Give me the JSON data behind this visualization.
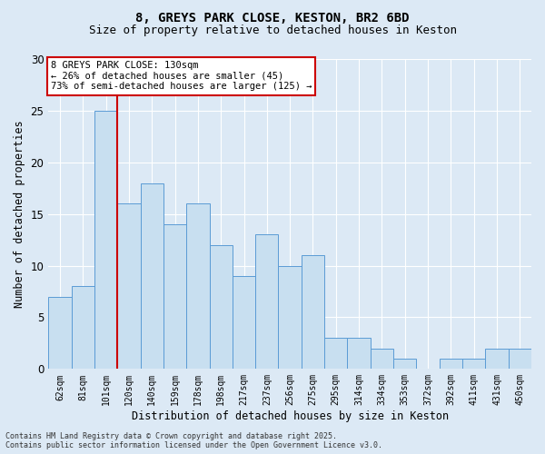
{
  "title_line1": "8, GREYS PARK CLOSE, KESTON, BR2 6BD",
  "title_line2": "Size of property relative to detached houses in Keston",
  "xlabel": "Distribution of detached houses by size in Keston",
  "ylabel": "Number of detached properties",
  "categories": [
    "62sqm",
    "81sqm",
    "101sqm",
    "120sqm",
    "140sqm",
    "159sqm",
    "178sqm",
    "198sqm",
    "217sqm",
    "237sqm",
    "256sqm",
    "275sqm",
    "295sqm",
    "314sqm",
    "334sqm",
    "353sqm",
    "372sqm",
    "392sqm",
    "411sqm",
    "431sqm",
    "450sqm"
  ],
  "values": [
    7,
    8,
    25,
    16,
    18,
    14,
    16,
    12,
    9,
    13,
    10,
    11,
    3,
    3,
    2,
    1,
    0,
    1,
    1,
    2,
    2
  ],
  "bar_color": "#c8dff0",
  "bar_edge_color": "#5b9bd5",
  "vline_x_index": 2.5,
  "vline_color": "#cc0000",
  "annotation_text": "8 GREYS PARK CLOSE: 130sqm\n← 26% of detached houses are smaller (45)\n73% of semi-detached houses are larger (125) →",
  "annotation_box_color": "#ffffff",
  "annotation_box_edge": "#cc0000",
  "ylim": [
    0,
    30
  ],
  "yticks": [
    0,
    5,
    10,
    15,
    20,
    25,
    30
  ],
  "background_color": "#dce9f5",
  "grid_color": "#ffffff",
  "footnote": "Contains HM Land Registry data © Crown copyright and database right 2025.\nContains public sector information licensed under the Open Government Licence v3.0."
}
